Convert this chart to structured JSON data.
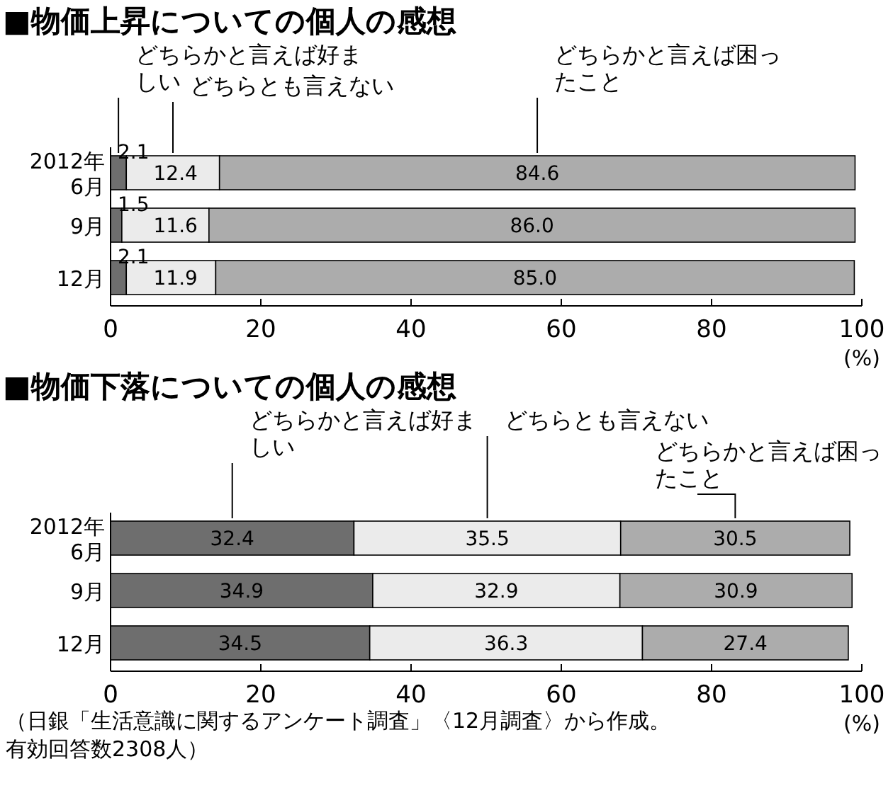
{
  "chart_data": [
    {
      "type": "bar",
      "orientation": "horizontal",
      "stacked": true,
      "title": "■物価上昇についての個人の感想",
      "categories": [
        "2012年 6月",
        "9月",
        "12月"
      ],
      "series": [
        {
          "name": "どちらかと言えば好ましい",
          "color": "#6e6e6e",
          "values": [
            2.1,
            1.5,
            2.1
          ],
          "value_labels": [
            "2.1",
            "1.5",
            "2.1"
          ]
        },
        {
          "name": "どちらとも言えない",
          "color": "#ebebeb",
          "values": [
            12.4,
            11.6,
            11.9
          ],
          "value_labels": [
            "12.4",
            "11.6",
            "11.9"
          ]
        },
        {
          "name": "どちらかと言えば困ったこと",
          "color": "#acacac",
          "values": [
            84.6,
            86.0,
            85.0
          ],
          "value_labels": [
            "84.6",
            "86.0",
            "85.0"
          ]
        }
      ],
      "xlim": [
        0,
        100
      ],
      "xticks": [
        0,
        20,
        40,
        60,
        80,
        100
      ],
      "xlabel": "(%)",
      "legend": "top",
      "grid": false
    },
    {
      "type": "bar",
      "orientation": "horizontal",
      "stacked": true,
      "title": "■物価下落についての個人の感想",
      "categories": [
        "2012年 6月",
        "9月",
        "12月"
      ],
      "series": [
        {
          "name": "どちらかと言えば好ましい",
          "color": "#6e6e6e",
          "values": [
            32.4,
            34.9,
            34.5
          ],
          "value_labels": [
            "32.4",
            "34.9",
            "34.5"
          ]
        },
        {
          "name": "どちらとも言えない",
          "color": "#ebebeb",
          "values": [
            35.5,
            32.9,
            36.3
          ],
          "value_labels": [
            "35.5",
            "32.9",
            "36.3"
          ]
        },
        {
          "name": "どちらかと言えば困ったこと",
          "color": "#acacac",
          "values": [
            30.5,
            30.9,
            27.4
          ],
          "value_labels": [
            "30.5",
            "30.9",
            "27.4"
          ]
        }
      ],
      "xlim": [
        0,
        100
      ],
      "xticks": [
        0,
        20,
        40,
        60,
        80,
        100
      ],
      "xlabel": "(%)",
      "legend": "top",
      "grid": false,
      "annotations": [
        "（日銀「生活意識に関するアンケート調査」〈12月調査〉から作成。",
        "有効回答数2308人）"
      ]
    }
  ]
}
